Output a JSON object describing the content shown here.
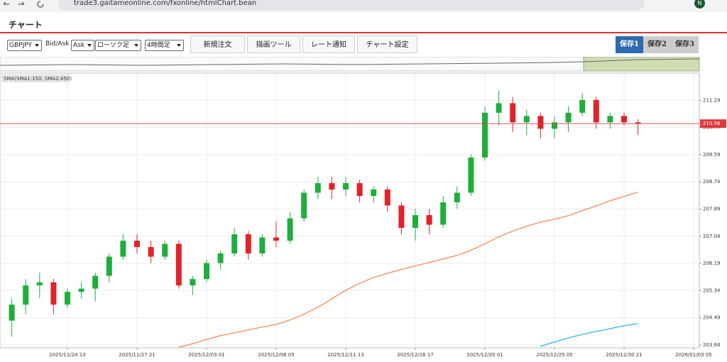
{
  "browser": {
    "url": "trade3.gaitameonline.com/fxonline/htmlChart.bean",
    "avatar": "N"
  },
  "header": {
    "title": "チャート"
  },
  "toolbar": {
    "symbol": "GBPJPY",
    "bid_ask_label": "Bid/Ask",
    "side": "Ask",
    "chart_style": "ローソク足",
    "timeframe": "4時間足",
    "buttons": [
      "新規注文",
      "描画ツール",
      "レート通知",
      "チャート設定"
    ],
    "save_tabs": [
      "保存1",
      "保存2",
      "保存3"
    ]
  },
  "chart_data": {
    "type": "candlestick",
    "indicator_label": "SMA(SMA1:150, SMA2:450)",
    "categories": [
      null,
      null,
      null,
      null,
      "2025/11/24 13",
      null,
      null,
      null,
      null,
      "2025/11/27 21",
      null,
      null,
      null,
      null,
      "2025/12/03 01",
      null,
      null,
      null,
      null,
      "2025/12/08 05",
      null,
      null,
      null,
      null,
      "2025/12/11 13",
      null,
      null,
      null,
      null,
      "2025/12/16 17",
      null,
      null,
      null,
      null,
      "2025/12/20 01",
      null,
      null,
      null,
      null,
      "2025/12/25 05",
      null,
      null,
      null,
      null,
      "2025/12/30 21",
      null,
      null,
      null,
      null,
      "2026/01/03 05"
    ],
    "open": [
      204.4,
      204.9,
      205.5,
      205.6,
      204.9,
      205.3,
      205.4,
      205.8,
      206.4,
      206.9,
      206.7,
      206.4,
      206.8,
      205.5,
      205.7,
      206.2,
      206.5,
      207.1,
      206.5,
      207.0,
      206.9,
      207.6,
      208.4,
      208.7,
      208.5,
      208.7,
      208.3,
      208.5,
      208.0,
      207.3,
      207.7,
      207.4,
      208.1,
      208.4,
      209.5,
      210.9,
      211.2,
      210.6,
      210.8,
      210.4,
      210.6,
      210.9,
      211.3,
      210.6,
      210.8,
      210.6,
      null,
      null,
      null,
      null
    ],
    "high": [
      205.1,
      205.7,
      205.9,
      205.7,
      205.4,
      205.6,
      205.9,
      206.5,
      207.1,
      207.1,
      206.9,
      206.9,
      206.9,
      205.8,
      206.3,
      206.6,
      207.3,
      207.2,
      207.1,
      207.5,
      207.8,
      208.5,
      208.9,
      208.9,
      208.9,
      208.8,
      208.6,
      208.6,
      208.1,
      207.9,
      207.9,
      208.3,
      208.6,
      209.6,
      211.1,
      211.6,
      211.4,
      211.0,
      210.9,
      210.8,
      211.1,
      211.5,
      211.4,
      210.9,
      210.9,
      210.7,
      null,
      null,
      null,
      null
    ],
    "low": [
      203.9,
      204.6,
      205.1,
      204.6,
      204.8,
      205.1,
      205.0,
      205.6,
      206.3,
      206.5,
      206.2,
      206.3,
      205.4,
      205.2,
      205.6,
      206.0,
      206.4,
      206.3,
      206.4,
      206.7,
      206.8,
      207.5,
      208.2,
      208.2,
      208.3,
      208.1,
      208.1,
      207.8,
      207.1,
      206.9,
      207.1,
      207.3,
      207.9,
      208.3,
      209.4,
      210.5,
      210.3,
      210.2,
      210.1,
      210.1,
      210.3,
      210.8,
      210.4,
      210.4,
      210.5,
      210.2,
      null,
      null,
      null,
      null
    ],
    "close": [
      204.9,
      205.5,
      205.6,
      204.9,
      205.3,
      205.4,
      205.8,
      206.4,
      206.9,
      206.7,
      206.4,
      206.8,
      205.5,
      205.7,
      206.2,
      206.5,
      207.1,
      206.5,
      207.0,
      206.9,
      207.6,
      208.4,
      208.7,
      208.5,
      208.7,
      208.3,
      208.5,
      208.0,
      207.3,
      207.7,
      207.4,
      208.1,
      208.4,
      209.5,
      210.9,
      211.2,
      210.6,
      210.8,
      210.4,
      210.6,
      210.9,
      211.3,
      210.6,
      210.8,
      210.6,
      210.56,
      null,
      null,
      null,
      null
    ],
    "up_color": "#1fae3c",
    "down_color": "#e0232b",
    "series": [
      {
        "color": "#f4895a",
        "values": [
          null,
          null,
          null,
          null,
          null,
          null,
          null,
          null,
          null,
          null,
          null,
          null,
          203.57,
          203.68,
          203.81,
          203.93,
          204.02,
          204.11,
          204.2,
          204.28,
          204.42,
          204.6,
          204.82,
          205.08,
          205.35,
          205.57,
          205.75,
          205.88,
          206.0,
          206.11,
          206.22,
          206.33,
          206.44,
          206.6,
          206.8,
          207.02,
          207.2,
          207.35,
          207.48,
          207.57,
          207.68,
          207.84,
          207.99,
          208.15,
          208.28,
          208.42,
          null,
          null,
          null,
          null
        ]
      },
      {
        "color": "#29b6e8",
        "values": [
          null,
          null,
          null,
          null,
          null,
          null,
          null,
          null,
          null,
          null,
          null,
          null,
          null,
          null,
          null,
          null,
          null,
          null,
          null,
          null,
          null,
          null,
          null,
          null,
          null,
          null,
          null,
          null,
          null,
          null,
          null,
          null,
          null,
          null,
          null,
          null,
          null,
          null,
          203.6,
          203.73,
          203.86,
          203.97,
          204.06,
          204.15,
          204.24,
          204.31,
          null,
          null,
          null,
          null
        ]
      }
    ],
    "current_price": 210.56,
    "current_price_color": "#e0383c",
    "ylim": [
      203.55,
      212.14
    ],
    "yticks": [
      203.64,
      204.49,
      205.34,
      206.19,
      207.04,
      207.89,
      208.74,
      209.59,
      210.44,
      211.29
    ],
    "grid": true
  }
}
